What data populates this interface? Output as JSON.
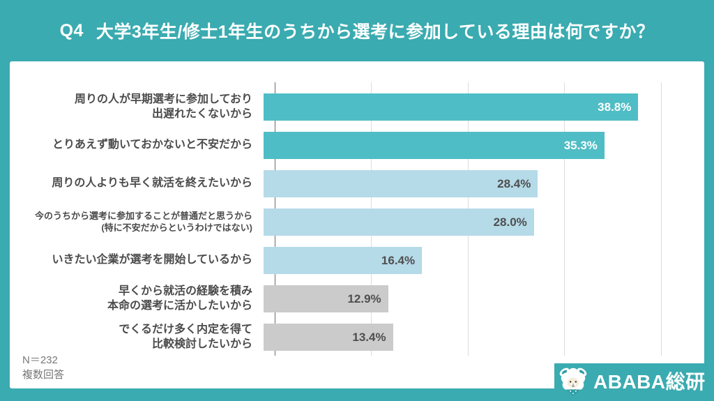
{
  "page": {
    "background": "#3aabb0",
    "card_background": "#ffffff"
  },
  "header": {
    "question_no": "Q4",
    "title": "大学3年生/修士1年生のうちから選考に参加している理由は何ですか？"
  },
  "chart_data": {
    "type": "bar",
    "orientation": "horizontal",
    "unit": "%",
    "xlim": [
      0,
      41.3
    ],
    "gridline_values": [
      0,
      10,
      20,
      30,
      40
    ],
    "grid": true,
    "legend": false,
    "axis_tick_labels_visible": false,
    "categories": [
      "周りの人が早期選考に参加しており出遅れたくないから",
      "とりあえず動いておかないと不安だから",
      "周りの人よりも早く就活を終えたいから",
      "今のうちから選考に参加することが普通だと思うから(特に不安だからというわけではない)",
      "いきたい企業が選考を開始しているから",
      "早くから就活の経験を積み本命の選考に活かしたいから",
      "でくるだけ多く内定を得て比較検討したいから"
    ],
    "values": [
      38.8,
      35.3,
      28.4,
      28.0,
      16.4,
      12.9,
      13.4
    ],
    "items": [
      {
        "label_lines": [
          "周りの人が早期選考に参加しており",
          "出遅れたくないから"
        ],
        "value": 38.8,
        "value_label": "38.8%",
        "bar_color": "#4fbdc5",
        "value_color": "#ffffff",
        "small_label": false
      },
      {
        "label_lines": [
          "とりあえず動いておかないと不安だから"
        ],
        "value": 35.3,
        "value_label": "35.3%",
        "bar_color": "#4fbdc5",
        "value_color": "#ffffff",
        "small_label": false
      },
      {
        "label_lines": [
          "周りの人よりも早く就活を終えたいから"
        ],
        "value": 28.4,
        "value_label": "28.4%",
        "bar_color": "#b5dae8",
        "value_color": "#4f4f4f",
        "small_label": false
      },
      {
        "label_lines": [
          "今のうちから選考に参加することが普通だと思うから",
          "(特に不安だからというわけではない)"
        ],
        "value": 28.0,
        "value_label": "28.0%",
        "bar_color": "#b5dae8",
        "value_color": "#4f4f4f",
        "small_label": true
      },
      {
        "label_lines": [
          "いきたい企業が選考を開始しているから"
        ],
        "value": 16.4,
        "value_label": "16.4%",
        "bar_color": "#b5dae8",
        "value_color": "#4f4f4f",
        "small_label": false
      },
      {
        "label_lines": [
          "早くから就活の経験を積み",
          "本命の選考に活かしたいから"
        ],
        "value": 12.9,
        "value_label": "12.9%",
        "bar_color": "#cbcbcb",
        "value_color": "#4f4f4f",
        "small_label": false
      },
      {
        "label_lines": [
          "でくるだけ多く内定を得て",
          "比較検討したいから"
        ],
        "value": 13.4,
        "value_label": "13.4%",
        "bar_color": "#cbcbcb",
        "value_color": "#4f4f4f",
        "small_label": false
      }
    ],
    "title": "Q4 大学3年生/修士1年生のうちから選考に参加している理由は何ですか？"
  },
  "footnote": {
    "sample_size": "N＝232",
    "note": "複数回答"
  },
  "logo": {
    "text": "ABABA総研",
    "icon": "alpaca-icon"
  },
  "colors": {
    "accent_teal": "#3aabb0",
    "bar_dark_teal": "#4fbdc5",
    "bar_light_blue": "#b5dae8",
    "bar_gray": "#cbcbcb",
    "gridline": "#dcdcdc",
    "axis_line": "#6a6a6a",
    "label_text": "#4b4b4b",
    "footnote_text": "#777777"
  }
}
